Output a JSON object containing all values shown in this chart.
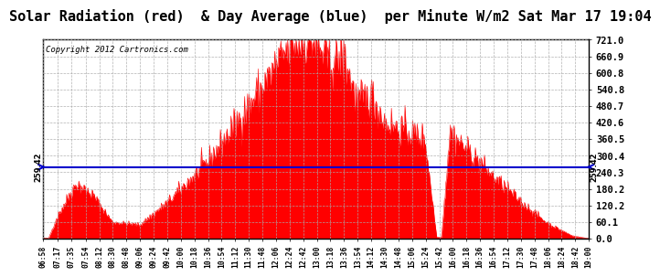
{
  "title": "Solar Radiation (red)  & Day Average (blue)  per Minute W/m2 Sat Mar 17 19:04",
  "copyright": "Copyright 2012 Cartronics.com",
  "avg_value": 259.42,
  "y_ticks": [
    0.0,
    60.1,
    120.2,
    180.2,
    240.3,
    300.4,
    360.5,
    420.6,
    480.7,
    540.8,
    600.8,
    660.9,
    721.0
  ],
  "y_max": 721.0,
  "y_min": 0.0,
  "fill_color": "#FF0000",
  "avg_line_color": "#0000CC",
  "background_color": "#FFFFFF",
  "grid_color": "#AAAAAA",
  "title_fontsize": 11,
  "x_tick_labels": [
    "06:58",
    "07:17",
    "07:35",
    "07:54",
    "08:12",
    "08:30",
    "08:48",
    "09:06",
    "09:24",
    "09:42",
    "10:00",
    "10:18",
    "10:36",
    "10:54",
    "11:12",
    "11:30",
    "11:48",
    "12:06",
    "12:24",
    "12:42",
    "13:00",
    "13:18",
    "13:36",
    "13:54",
    "14:12",
    "14:30",
    "14:48",
    "15:06",
    "15:24",
    "15:42",
    "16:00",
    "16:18",
    "16:36",
    "16:54",
    "17:12",
    "17:30",
    "17:48",
    "18:06",
    "18:24",
    "18:42",
    "19:00"
  ]
}
